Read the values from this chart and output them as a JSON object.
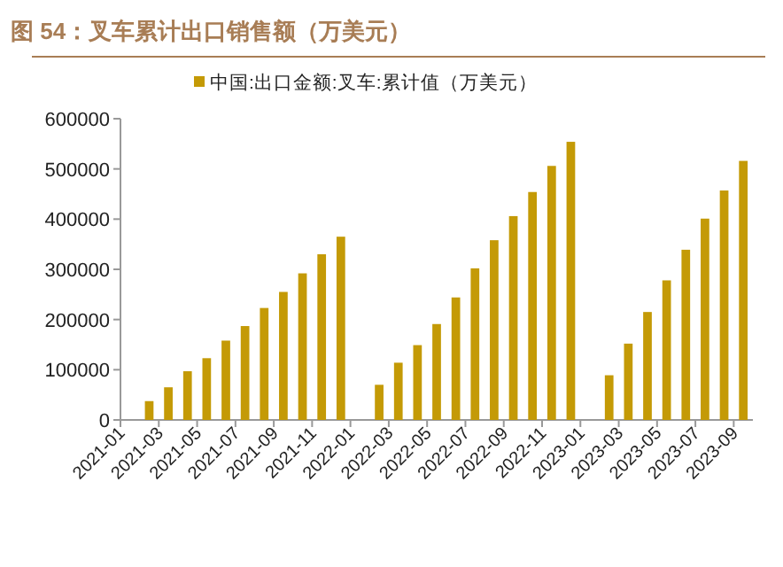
{
  "chart_data": {
    "type": "bar",
    "title": "图 54：叉车累计出口销售额（万美元）",
    "categories": [
      "2021-01",
      null,
      "2021-03",
      null,
      "2021-05",
      null,
      "2021-07",
      null,
      "2021-09",
      null,
      "2021-11",
      null,
      "2022-01",
      null,
      "2022-03",
      null,
      "2022-05",
      null,
      "2022-07",
      null,
      "2022-09",
      null,
      "2022-11",
      null,
      "2023-01",
      null,
      "2023-03",
      null,
      "2023-05",
      null,
      "2023-07",
      null,
      "2023-09"
    ],
    "series": [
      {
        "name": "中国:出口金额:叉车:累计值（万美元）",
        "color": "#c49a06",
        "values": [
          null,
          37500,
          65000,
          97000,
          123000,
          158000,
          187000,
          223000,
          255000,
          292000,
          330000,
          365000,
          null,
          70000,
          114000,
          149000,
          191000,
          244000,
          302000,
          358000,
          406000,
          454000,
          506000,
          554000,
          null,
          89000,
          152000,
          215000,
          278000,
          339000,
          401000,
          457000,
          516000
        ]
      }
    ],
    "ylim": [
      0,
      600000
    ],
    "yticks": [
      0,
      100000,
      200000,
      300000,
      400000,
      500000,
      600000
    ],
    "grid": false,
    "legend": "top"
  }
}
